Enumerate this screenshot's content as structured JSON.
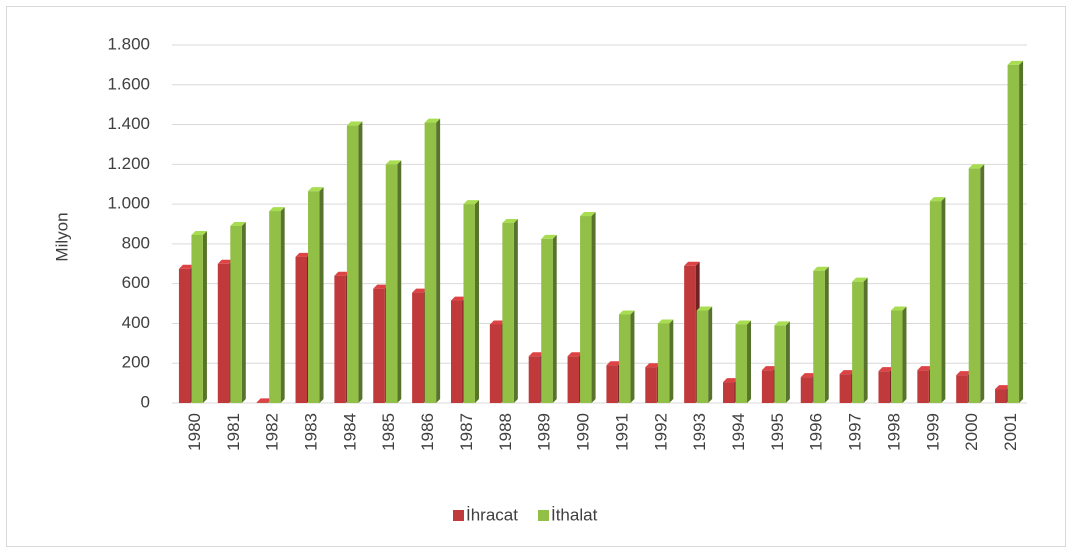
{
  "chart_data": {
    "type": "bar",
    "y_label": "Milyon",
    "categories": [
      "1980",
      "1981",
      "1982",
      "1983",
      "1984",
      "1985",
      "1986",
      "1987",
      "1988",
      "1989",
      "1990",
      "1991",
      "1992",
      "1993",
      "1994",
      "1995",
      "1996",
      "1997",
      "1998",
      "1999",
      "2000",
      "2001"
    ],
    "series": [
      {
        "name": "İhracat",
        "color": "#c0393b",
        "values": [
          675,
          700,
          3,
          735,
          640,
          575,
          555,
          515,
          395,
          235,
          235,
          190,
          180,
          690,
          105,
          165,
          130,
          145,
          160,
          165,
          140,
          70
        ]
      },
      {
        "name": "İthalat",
        "color": "#92c047",
        "values": [
          845,
          890,
          965,
          1065,
          1395,
          1200,
          1410,
          1000,
          905,
          825,
          940,
          445,
          400,
          465,
          395,
          390,
          665,
          610,
          465,
          1015,
          1180,
          1700
        ]
      }
    ],
    "ylim": [
      0,
      1800
    ],
    "yticks": [
      0,
      200,
      400,
      600,
      800,
      {
        "value": 1000,
        "label": "1.000"
      },
      {
        "value": 1200,
        "label": "1.200"
      },
      {
        "value": 1400,
        "label": "1.400"
      },
      {
        "value": 1600,
        "label": "1.600"
      },
      {
        "value": 1800,
        "label": "1.800"
      }
    ],
    "grid": true,
    "legend": "bottom"
  }
}
